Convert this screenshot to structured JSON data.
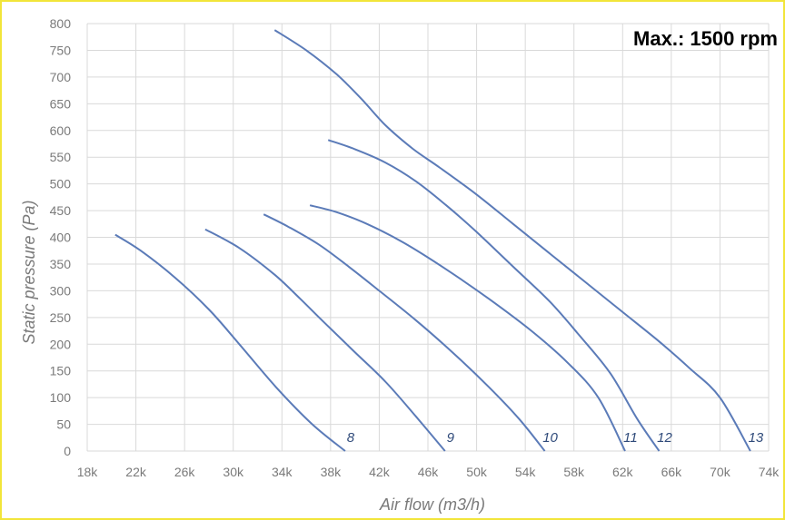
{
  "chart_data": {
    "type": "line",
    "annotation": "Max.: 1500 rpm",
    "xlabel": "Air flow (m3/h)",
    "ylabel": "Static pressure (Pa)",
    "xlim": [
      18000,
      74000
    ],
    "ylim": [
      0,
      800
    ],
    "x_ticks": [
      18000,
      22000,
      26000,
      30000,
      34000,
      38000,
      42000,
      46000,
      50000,
      54000,
      58000,
      62000,
      66000,
      70000,
      74000
    ],
    "x_tick_labels": [
      "18k",
      "22k",
      "26k",
      "30k",
      "34k",
      "38k",
      "42k",
      "46k",
      "50k",
      "54k",
      "58k",
      "62k",
      "66k",
      "70k",
      "74k"
    ],
    "y_ticks": [
      0,
      50,
      100,
      150,
      200,
      250,
      300,
      350,
      400,
      450,
      500,
      550,
      600,
      650,
      700,
      750,
      800
    ],
    "y_tick_labels": [
      "0",
      "50",
      "100",
      "150",
      "200",
      "250",
      "300",
      "350",
      "400",
      "450",
      "500",
      "550",
      "600",
      "650",
      "700",
      "750",
      "800"
    ],
    "grid": true,
    "colors": {
      "curve": "#5b7bb8",
      "label": "#2f4a7a",
      "border": "#f2e53a",
      "grid": "#d9d9d9"
    },
    "series": [
      {
        "name": "8",
        "points": [
          [
            20300,
            405
          ],
          [
            22400,
            375
          ],
          [
            25200,
            325
          ],
          [
            28000,
            265
          ],
          [
            30500,
            200
          ],
          [
            33500,
            120
          ],
          [
            36500,
            50
          ],
          [
            39200,
            0
          ]
        ]
      },
      {
        "name": "9",
        "points": [
          [
            27700,
            415
          ],
          [
            30500,
            380
          ],
          [
            33400,
            330
          ],
          [
            35500,
            285
          ],
          [
            37500,
            240
          ],
          [
            40000,
            185
          ],
          [
            42500,
            130
          ],
          [
            45000,
            65
          ],
          [
            47400,
            0
          ]
        ]
      },
      {
        "name": "10",
        "points": [
          [
            32500,
            443
          ],
          [
            34500,
            420
          ],
          [
            37000,
            387
          ],
          [
            39500,
            345
          ],
          [
            42000,
            300
          ],
          [
            45000,
            245
          ],
          [
            48000,
            185
          ],
          [
            51000,
            120
          ],
          [
            53500,
            60
          ],
          [
            55600,
            0
          ]
        ]
      },
      {
        "name": "11",
        "points": [
          [
            36300,
            460
          ],
          [
            38500,
            447
          ],
          [
            41000,
            425
          ],
          [
            44000,
            390
          ],
          [
            47500,
            340
          ],
          [
            51000,
            285
          ],
          [
            54500,
            225
          ],
          [
            57500,
            165
          ],
          [
            60000,
            100
          ],
          [
            62200,
            0
          ]
        ]
      },
      {
        "name": "12",
        "points": [
          [
            37800,
            582
          ],
          [
            40000,
            565
          ],
          [
            42500,
            540
          ],
          [
            45000,
            505
          ],
          [
            47500,
            460
          ],
          [
            50000,
            410
          ],
          [
            53000,
            345
          ],
          [
            56000,
            280
          ],
          [
            58500,
            215
          ],
          [
            61000,
            145
          ],
          [
            63200,
            60
          ],
          [
            65000,
            0
          ]
        ]
      },
      {
        "name": "13",
        "points": [
          [
            33400,
            788
          ],
          [
            36000,
            750
          ],
          [
            38500,
            705
          ],
          [
            40500,
            660
          ],
          [
            42500,
            610
          ],
          [
            44800,
            565
          ],
          [
            47000,
            530
          ],
          [
            50000,
            480
          ],
          [
            53000,
            425
          ],
          [
            56000,
            370
          ],
          [
            59000,
            315
          ],
          [
            62000,
            260
          ],
          [
            65000,
            205
          ],
          [
            67500,
            155
          ],
          [
            70000,
            100
          ],
          [
            72500,
            0
          ]
        ]
      }
    ]
  }
}
